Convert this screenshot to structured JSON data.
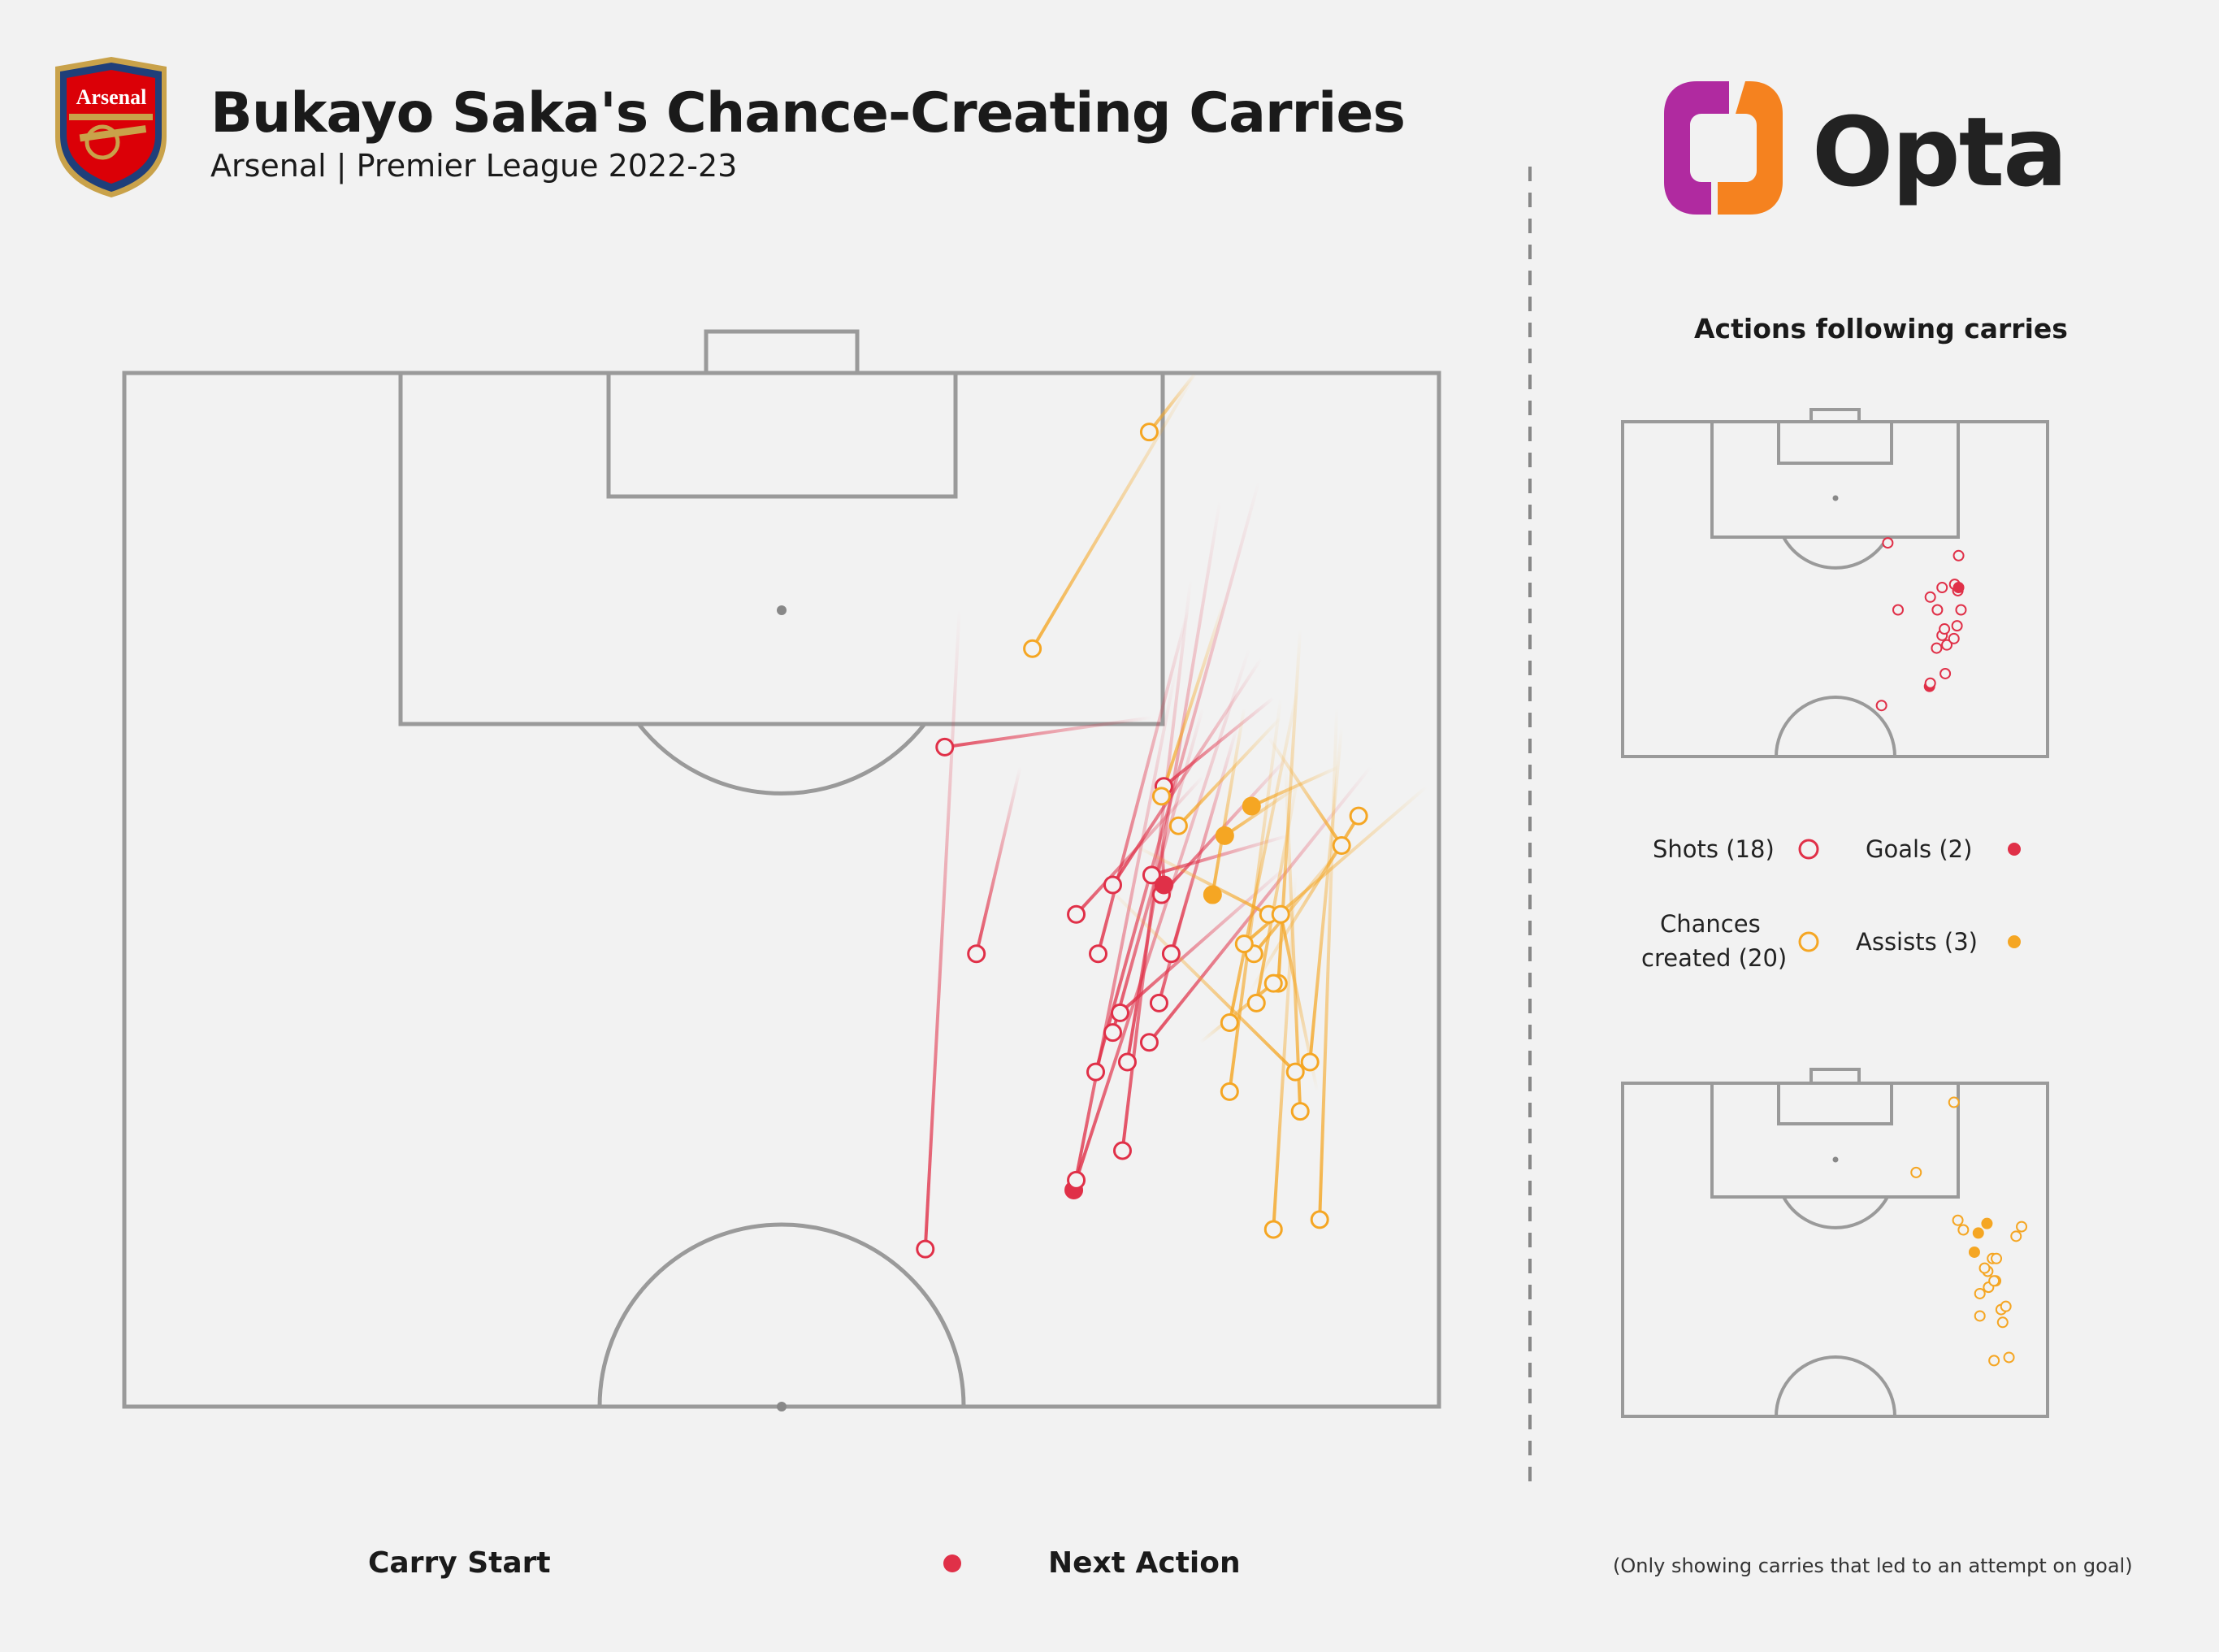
{
  "header": {
    "title": "Bukayo Saka's Chance-Creating Carries",
    "subtitle": "Arsenal | Premier League 2022-23",
    "badge_text": "Arsenal",
    "brand": "Opta"
  },
  "mini": {
    "title": "Actions following carries"
  },
  "legend": {
    "shots": "Shots (18)",
    "goals": "Goals (2)",
    "chances_line1": "Chances",
    "chances_line2": "created (20)",
    "assists": "Assists (3)",
    "carry_start": "Carry Start",
    "next_action": "Next Action"
  },
  "footnote": "(Only showing carries that led to an attempt on goal)",
  "colors": {
    "shot": "#e03048",
    "chance": "#f5a623",
    "pitch_line": "#9a9a9a",
    "background": "#f2f2f2",
    "divider": "#888888"
  },
  "chart_data": {
    "type": "scatter",
    "pitch": "half-pitch, attacking upward",
    "categories": [
      "shot",
      "goal",
      "chance",
      "assist"
    ],
    "carries": [
      {
        "type": "shot",
        "end": [
          329,
          89
        ],
        "start": [
          343,
          24
        ]
      },
      {
        "type": "goal",
        "end": [
          390,
          83
        ],
        "start": [
          432,
          30
        ]
      },
      {
        "type": "shot",
        "end": [
          391,
          82
        ],
        "start": [
          462,
          28
        ]
      },
      {
        "type": "shot",
        "end": [
          410,
          79
        ],
        "start": [
          438,
          21
        ]
      },
      {
        "type": "shot",
        "end": [
          412,
          70
        ],
        "start": [
          450,
          13
        ]
      },
      {
        "type": "shot",
        "end": [
          399,
          71
        ],
        "start": [
          466,
          11
        ]
      },
      {
        "type": "shot",
        "end": [
          406,
          67
        ],
        "start": [
          443,
          34
        ]
      },
      {
        "type": "shot",
        "end": [
          400,
          59
        ],
        "start": [
          437,
          24
        ]
      },
      {
        "type": "shot",
        "end": [
          409,
          65
        ],
        "start": [
          478,
          50
        ]
      },
      {
        "type": "shot",
        "end": [
          421,
          68
        ],
        "start": [
          512,
          40
        ]
      },
      {
        "type": "shot",
        "end": [
          425,
          64
        ],
        "start": [
          439,
          51
        ]
      },
      {
        "type": "shot",
        "end": [
          430,
          59
        ],
        "start": [
          457,
          36
        ]
      },
      {
        "type": "shot",
        "end": [
          350,
          59
        ],
        "start": [
          368,
          40
        ]
      },
      {
        "type": "shot",
        "end": [
          406,
          52
        ],
        "start": [
          467,
          29
        ]
      },
      {
        "type": "shot",
        "end": [
          391,
          55
        ],
        "start": [
          443,
          41
        ]
      },
      {
        "type": "shot",
        "end": [
          426,
          53
        ],
        "start": [
          478,
          39
        ]
      },
      {
        "type": "shot",
        "end": [
          422,
          51
        ],
        "start": [
          478,
          47
        ]
      },
      {
        "type": "shot",
        "end": [
          337,
          38
        ],
        "start": [
          422,
          35
        ]
      },
      {
        "type": "goal",
        "end": [
          427,
          52
        ],
        "start": [
          426,
          46
        ]
      },
      {
        "type": "shot",
        "end": [
          427,
          42
        ],
        "start": [
          472,
          33
        ]
      },
      {
        "type": "chance",
        "end": [
          472,
          87
        ],
        "start": [
          481,
          51
        ]
      },
      {
        "type": "chance",
        "end": [
          491,
          86
        ],
        "start": [
          498,
          34
        ]
      },
      {
        "type": "chance",
        "end": [
          483,
          75
        ],
        "start": [
          477,
          40
        ]
      },
      {
        "type": "chance",
        "end": [
          470,
          55
        ],
        "start": [
          415,
          48
        ]
      },
      {
        "type": "chance",
        "end": [
          481,
          71
        ],
        "start": [
          403,
          52
        ]
      },
      {
        "type": "chance",
        "end": [
          487,
          70
        ],
        "start": [
          500,
          36
        ]
      },
      {
        "type": "chance",
        "end": [
          454,
          66
        ],
        "start": [
          482,
          32
        ]
      },
      {
        "type": "chance",
        "end": [
          465,
          64
        ],
        "start": [
          482,
          41
        ]
      },
      {
        "type": "chance",
        "end": [
          464,
          59
        ],
        "start": [
          504,
          47
        ]
      },
      {
        "type": "chance",
        "end": [
          474,
          62
        ],
        "start": [
          483,
          26
        ]
      },
      {
        "type": "chance",
        "end": [
          454,
          73
        ],
        "start": [
          475,
          33
        ]
      },
      {
        "type": "chance",
        "end": [
          475,
          55
        ],
        "start": [
          490,
          73
        ]
      },
      {
        "type": "chance",
        "end": [
          472,
          62
        ],
        "start": [
          442,
          68
        ]
      },
      {
        "type": "chance",
        "end": [
          500,
          48
        ],
        "start": [
          470,
          37
        ]
      },
      {
        "type": "chance",
        "end": [
          460,
          58
        ],
        "start": [
          535,
          42
        ]
      },
      {
        "type": "chance",
        "end": [
          507,
          45
        ],
        "start": [
          462,
          63
        ]
      },
      {
        "type": "assist",
        "end": [
          447,
          53
        ],
        "start": [
          460,
          34
        ]
      },
      {
        "type": "assist",
        "end": [
          452,
          47
        ],
        "start": [
          482,
          42
        ]
      },
      {
        "type": "assist",
        "end": [
          463,
          44
        ],
        "start": [
          499,
          40
        ]
      },
      {
        "type": "chance",
        "end": [
          433,
          46
        ],
        "start": [
          475,
          35
        ]
      },
      {
        "type": "chance",
        "end": [
          426,
          43
        ],
        "start": [
          452,
          23
        ]
      },
      {
        "type": "chance",
        "end": [
          373,
          28
        ],
        "start": [
          440,
          0
        ]
      },
      {
        "type": "chance",
        "end": [
          421,
          6
        ],
        "start": [
          440,
          0
        ]
      }
    ]
  }
}
